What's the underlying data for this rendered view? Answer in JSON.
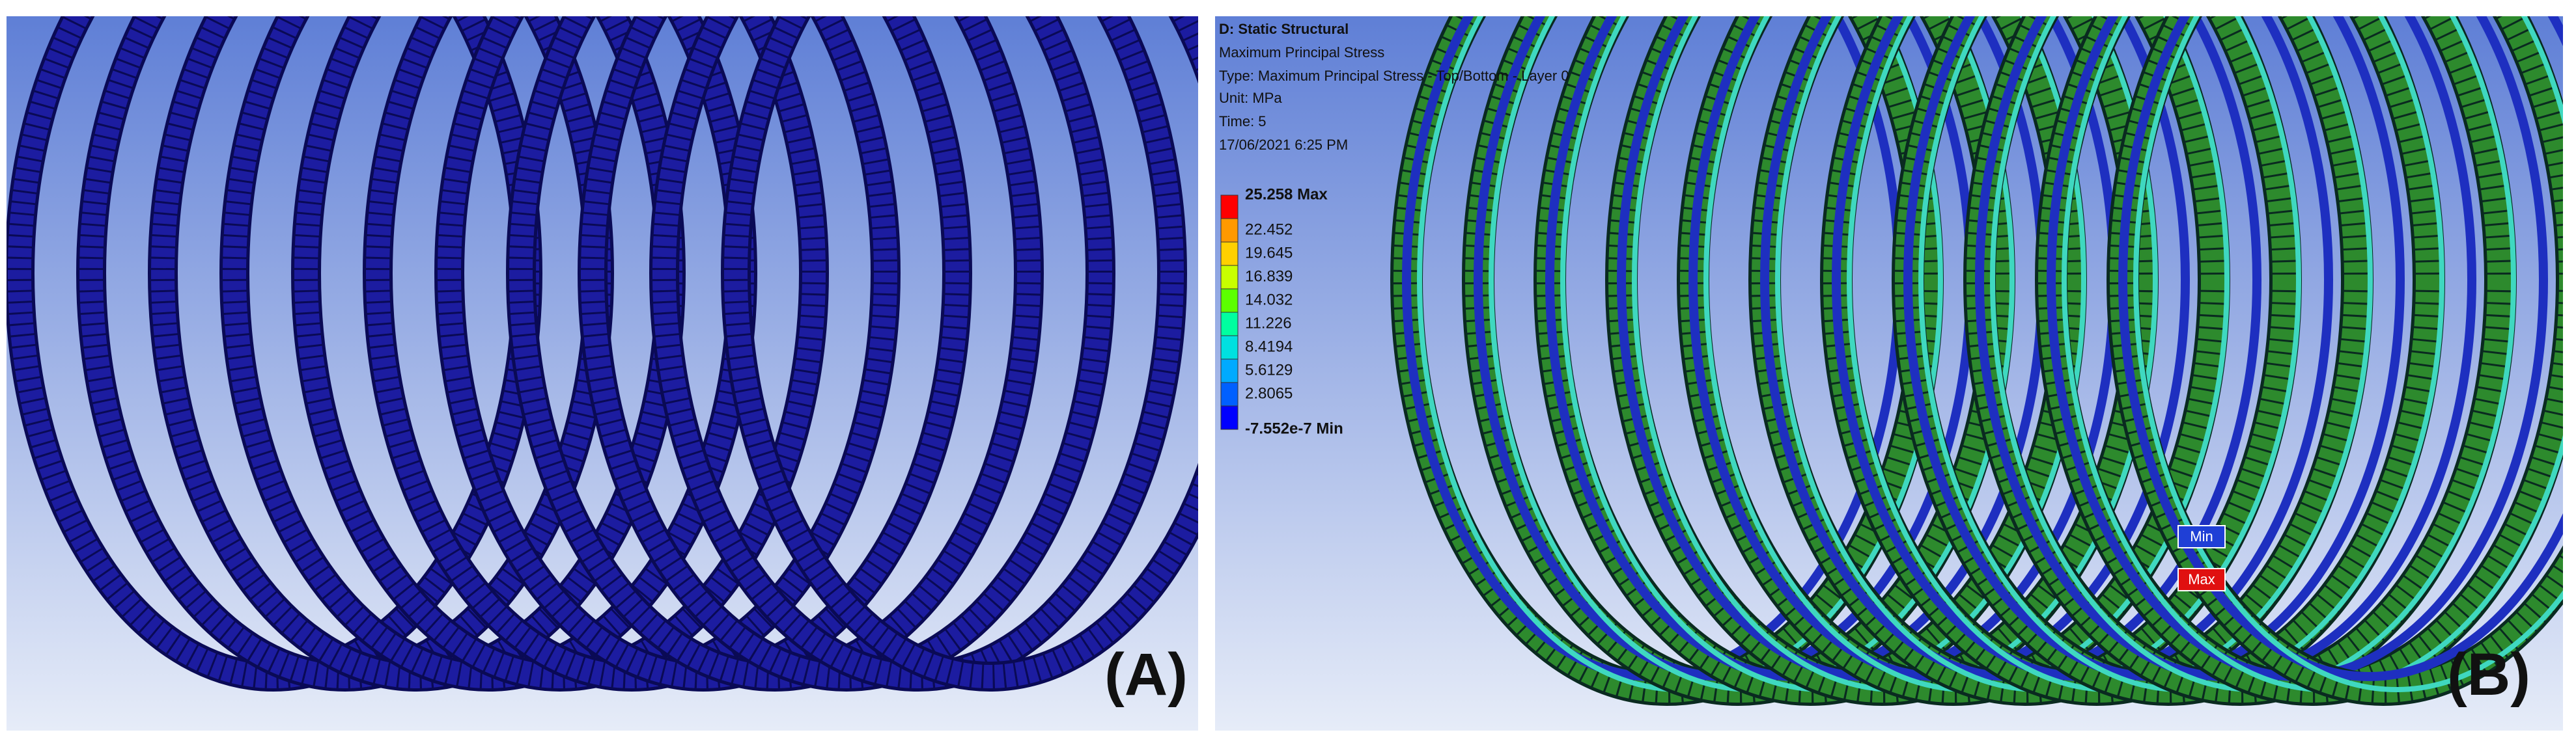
{
  "panel_a": {
    "label": "(A)"
  },
  "panel_b": {
    "label": "(B)",
    "probe_min": "Min",
    "probe_max": "Max"
  },
  "legend": {
    "title": "D: Static Structural",
    "result": "Maximum Principal Stress",
    "type": "Type: Maximum Principal Stress - Top/Bottom - Layer 0",
    "unit": "Unit: MPa",
    "time": "Time: 5",
    "date": "17/06/2021 6:25 PM",
    "values": [
      "25.258 Max",
      "22.452",
      "19.645",
      "16.839",
      "14.032",
      "11.226",
      "8.4194",
      "5.6129",
      "2.8065",
      "-7.552e-7 Min"
    ]
  }
}
